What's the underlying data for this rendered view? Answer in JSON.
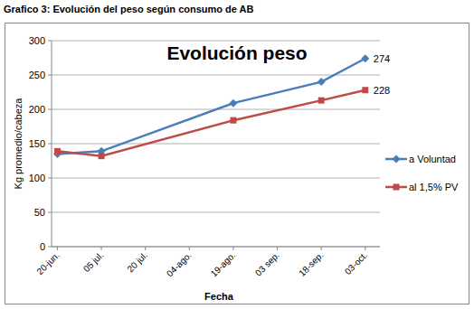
{
  "chart_data": {
    "type": "line",
    "caption": "Grafico 3: Evolución del peso según consumo de AB",
    "title": "Evolución peso",
    "x_label": "Fecha",
    "y_label": "Kg promedio/cabeza",
    "xlim": [
      -2,
      110
    ],
    "xticks": [
      {
        "value": 0,
        "label": "20-jun."
      },
      {
        "value": 15,
        "label": "05 jul."
      },
      {
        "value": 30,
        "label": "20 jul."
      },
      {
        "value": 45,
        "label": "04-ago."
      },
      {
        "value": 60,
        "label": "19-ago."
      },
      {
        "value": 75,
        "label": "03 sep."
      },
      {
        "value": 90,
        "label": "18-sep."
      },
      {
        "value": 105,
        "label": "03-oct."
      }
    ],
    "ylim": [
      0,
      300
    ],
    "yticks": [
      0,
      50,
      100,
      150,
      200,
      250,
      300
    ],
    "grid": true,
    "legend": "right",
    "series": [
      {
        "name": "a Voluntad",
        "color": "#4a7ebb",
        "marker": "diamond",
        "x": [
          0,
          15,
          60,
          90,
          105
        ],
        "values": [
          135,
          139,
          209,
          240,
          274
        ]
      },
      {
        "name": "al 1,5% PV",
        "color": "#be4b48",
        "marker": "square",
        "x": [
          0,
          15,
          60,
          90,
          105
        ],
        "values": [
          139,
          132,
          184,
          213,
          228
        ]
      }
    ],
    "annotations": [
      "274",
      "228"
    ]
  }
}
